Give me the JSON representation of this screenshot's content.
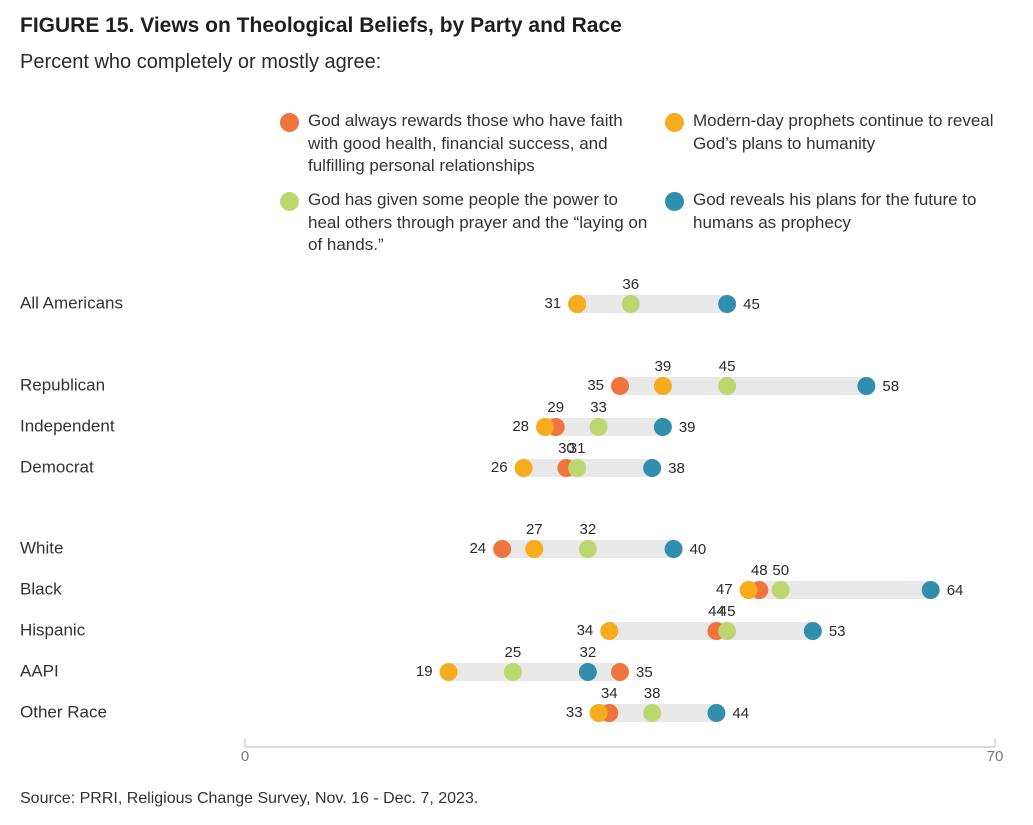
{
  "title": "FIGURE 15. Views on Theological Beliefs, by Party and Race",
  "subtitle": "Percent who completely or mostly agree:",
  "source": "Source: PRRI, Religious Change Survey, Nov. 16 - Dec. 7, 2023.",
  "colors": {
    "rewards": "#f0743e",
    "prophets": "#f6ac1c",
    "heal": "#bcd770",
    "reveals": "#2f8fac",
    "track": "#e8e8e8",
    "axis": "#c8c8c8"
  },
  "chart_data": {
    "type": "dot",
    "xlim": [
      0,
      70
    ],
    "x_ticks": [
      "0",
      "70"
    ],
    "series": [
      {
        "key": "rewards",
        "name": "God always rewards those who have faith with good health, financial success, and fulfilling personal relationships"
      },
      {
        "key": "prophets",
        "name": "Modern-day prophets continue to reveal God’s plans to humanity"
      },
      {
        "key": "heal",
        "name": "God has given some people the power to heal others through prayer and the “laying on of hands.”"
      },
      {
        "key": "reveals",
        "name": "God reveals his plans for the future to humans as prophecy"
      }
    ],
    "rows": [
      {
        "label": "All Americans",
        "rewards": 31,
        "prophets": 31,
        "heal": 36,
        "reveals": 45
      },
      {
        "label": "Republican",
        "rewards": 35,
        "prophets": 39,
        "heal": 45,
        "reveals": 58
      },
      {
        "label": "Independent",
        "rewards": 29,
        "prophets": 28,
        "heal": 33,
        "reveals": 39
      },
      {
        "label": "Democrat",
        "rewards": 30,
        "prophets": 26,
        "heal": 31,
        "reveals": 38
      },
      {
        "label": "White",
        "rewards": 24,
        "prophets": 27,
        "heal": 32,
        "reveals": 40
      },
      {
        "label": "Black",
        "rewards": 48,
        "prophets": 47,
        "heal": 50,
        "reveals": 64
      },
      {
        "label": "Hispanic",
        "rewards": 44,
        "prophets": 34,
        "heal": 45,
        "reveals": 53
      },
      {
        "label": "AAPI",
        "rewards": 35,
        "prophets": 19,
        "heal": 25,
        "reveals": 32
      },
      {
        "label": "Other Race",
        "rewards": 34,
        "prophets": 33,
        "heal": 38,
        "reveals": 44
      }
    ]
  }
}
